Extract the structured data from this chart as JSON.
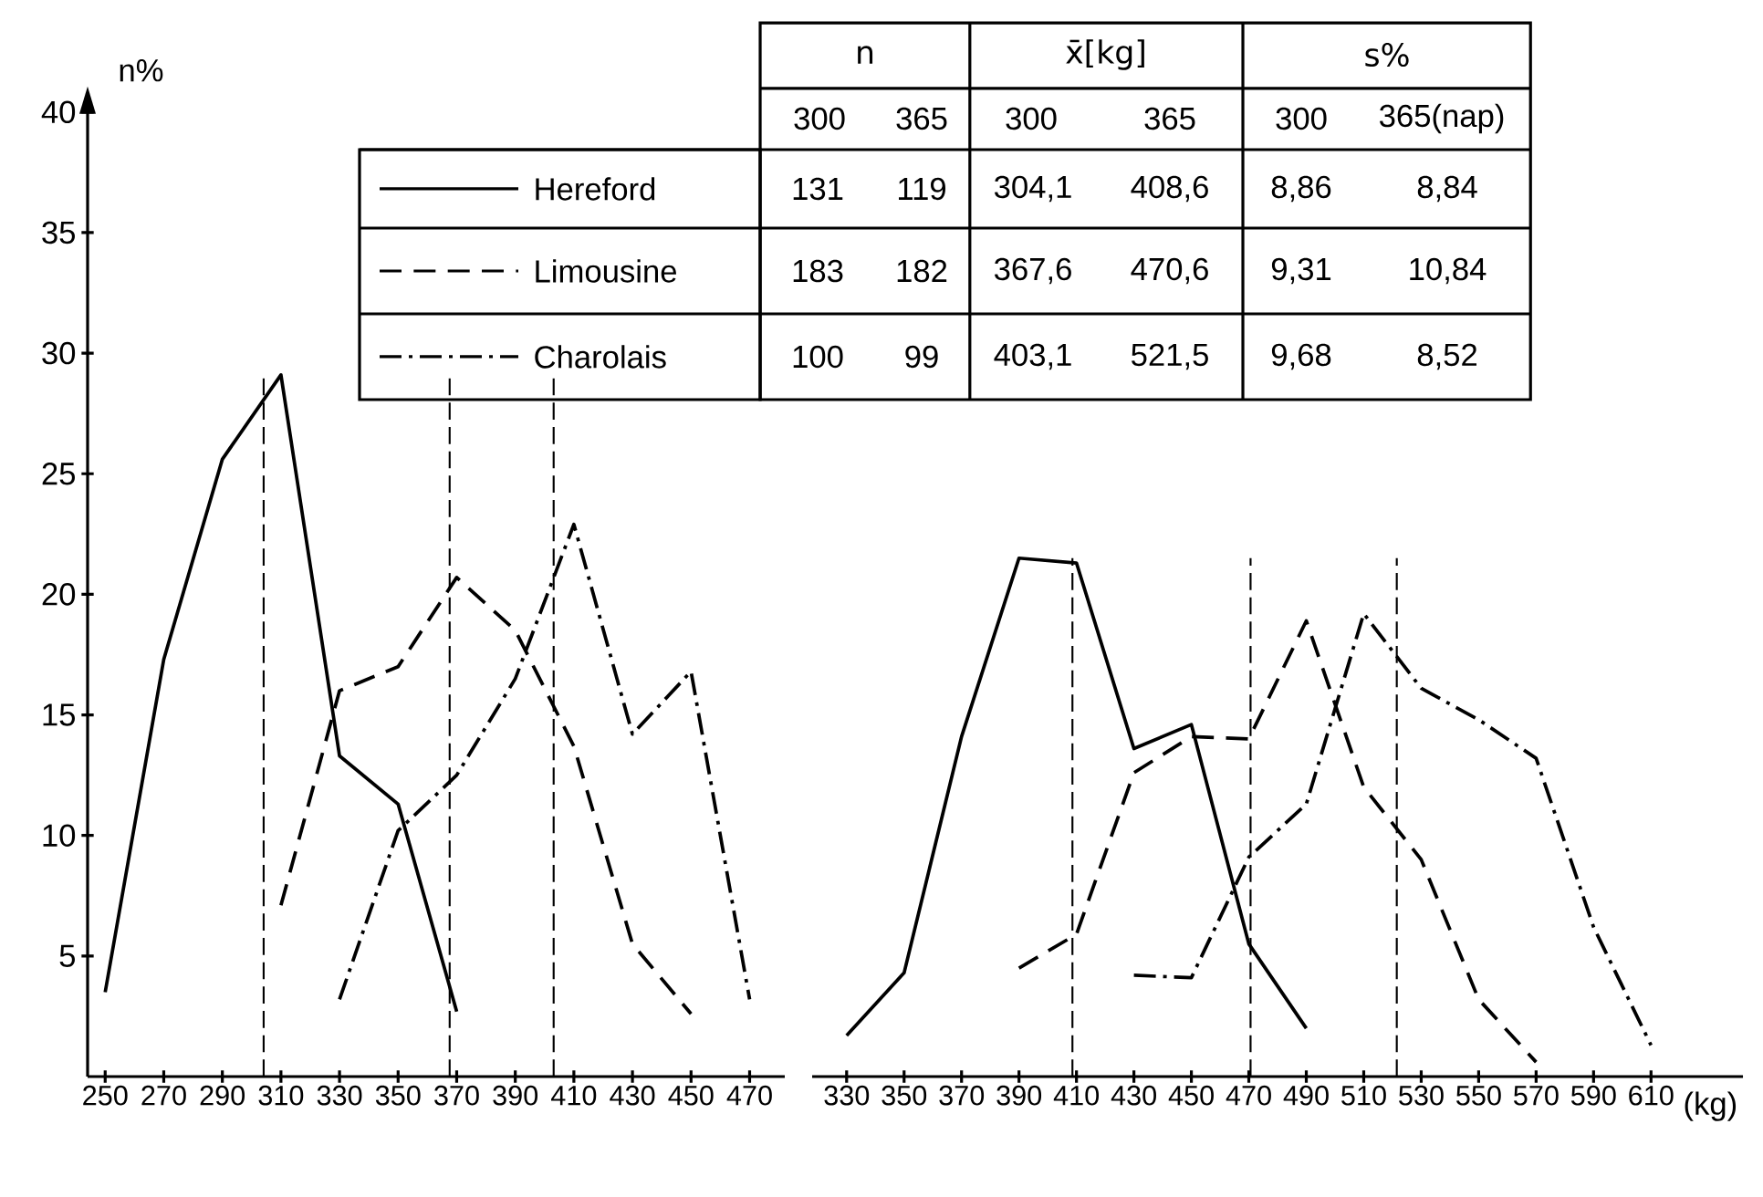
{
  "chart_data": [
    {
      "type": "line",
      "ylabel": "n%",
      "xlim": [
        244,
        482
      ],
      "ylim": [
        0,
        40
      ],
      "xticks": [
        250,
        270,
        290,
        310,
        330,
        350,
        370,
        390,
        410,
        430,
        450,
        470
      ],
      "yticks": [
        5,
        10,
        15,
        20,
        25,
        30,
        35,
        40
      ],
      "legend": "top",
      "series": [
        {
          "name": "Hereford",
          "color": "#000000",
          "line_style": "solid",
          "x": [
            250,
            270,
            290,
            310,
            330,
            350,
            370
          ],
          "values": [
            3.5,
            17.3,
            25.6,
            29.1,
            13.3,
            11.3,
            2.7
          ]
        },
        {
          "name": "Limousine",
          "color": "#000000",
          "line_style": "dashed",
          "x": [
            310,
            330,
            350,
            370,
            390,
            410,
            430,
            450
          ],
          "values": [
            7.1,
            16.0,
            17.0,
            20.7,
            18.5,
            13.7,
            5.5,
            2.6
          ]
        },
        {
          "name": "Charolais",
          "color": "#000000",
          "line_style": "dashdot",
          "x": [
            330,
            350,
            370,
            390,
            410,
            430,
            450,
            470
          ],
          "values": [
            3.2,
            10.2,
            12.5,
            16.5,
            22.9,
            14.2,
            16.8,
            3.2
          ]
        }
      ],
      "ref_lines": [
        {
          "axis": "x",
          "value": 304.1,
          "color": "#000000",
          "line_style": "dashed"
        },
        {
          "axis": "x",
          "value": 367.6,
          "color": "#000000",
          "line_style": "dashed"
        },
        {
          "axis": "x",
          "value": 403.1,
          "color": "#000000",
          "line_style": "dashed"
        }
      ],
      "annotations": [
        "n",
        "x̄[kg]",
        "s%",
        "300",
        "365",
        "300",
        "365",
        "300",
        "365(nap)",
        "131",
        "119",
        "304,1",
        "408,6",
        "8,86",
        "8,84",
        "183",
        "182",
        "367,6",
        "470,6",
        "9,31",
        "10,84",
        "100",
        "99",
        "403,1",
        "521,5",
        "9,68",
        "8,52"
      ]
    },
    {
      "type": "line",
      "xlabel": "(kg)",
      "xlim": [
        318,
        642
      ],
      "ylim": [
        0,
        40
      ],
      "xticks": [
        330,
        350,
        370,
        390,
        410,
        430,
        450,
        470,
        490,
        510,
        530,
        550,
        570,
        590,
        610
      ],
      "tick_labels": "x",
      "series": [
        {
          "color": "#000000",
          "line_style": "solid",
          "x": [
            330,
            350,
            370,
            390,
            410,
            430,
            450,
            470,
            490
          ],
          "values": [
            1.7,
            4.3,
            14.1,
            21.5,
            21.3,
            13.6,
            14.6,
            5.5,
            2.0
          ]
        },
        {
          "color": "#000000",
          "line_style": "dashed",
          "x": [
            390,
            410,
            430,
            450,
            470,
            490,
            510,
            530,
            550,
            570
          ],
          "values": [
            4.5,
            5.9,
            12.6,
            14.1,
            14.0,
            18.9,
            12.0,
            9.0,
            3.2,
            0.6
          ]
        },
        {
          "color": "#000000",
          "line_style": "dashdot",
          "x": [
            430,
            450,
            470,
            490,
            510,
            530,
            550,
            570,
            590,
            610
          ],
          "values": [
            4.2,
            4.1,
            9.1,
            11.3,
            19.2,
            16.1,
            14.8,
            13.2,
            6.2,
            1.3
          ]
        }
      ],
      "ref_lines": [
        {
          "axis": "x",
          "value": 408.6,
          "color": "#000000",
          "line_style": "dashed"
        },
        {
          "axis": "x",
          "value": 470.6,
          "color": "#000000",
          "line_style": "dashed"
        },
        {
          "axis": "x",
          "value": 521.5,
          "color": "#000000",
          "line_style": "dashed"
        }
      ]
    }
  ]
}
